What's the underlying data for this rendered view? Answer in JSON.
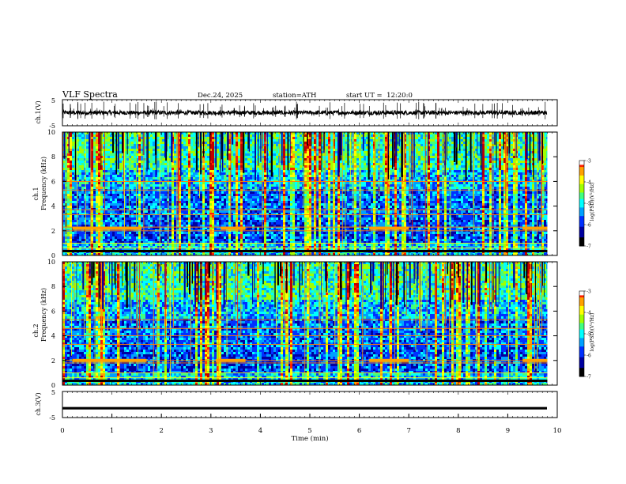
{
  "header": {
    "title": "VLF Spectra",
    "date": "Dec.24, 2025",
    "station": "station=ATH",
    "start_ut": "start UT =  12:20:0"
  },
  "chart_data": [
    {
      "type": "line",
      "panel": "ch1-waveform",
      "ylabel": "ch.1(V)",
      "ylim": [
        -5,
        5
      ],
      "y_ticks": [
        "5",
        "-5"
      ],
      "xlim": [
        0,
        10
      ],
      "visible_x_range": [
        0,
        9.8
      ],
      "baseline_v": 0,
      "description_values": {
        "typical_min_v": -1.5,
        "typical_max_v": 1.5
      }
    },
    {
      "type": "heatmap",
      "panel": "ch1-spectrogram",
      "ylabel": "ch.1 Frequency (kHz)",
      "ylim": [
        0,
        10
      ],
      "y_ticks": [
        "0",
        "2",
        "4",
        "6",
        "8",
        "10"
      ],
      "xlim": [
        0,
        10
      ],
      "visible_x_range": [
        0,
        9.8
      ],
      "colorbar": {
        "label": "log(PSD)(V²/Hz)",
        "range": [
          -7,
          -3
        ],
        "ticks": [
          "-3",
          "-4",
          "-5",
          "-6",
          "-7"
        ]
      },
      "band_lines_khz": [
        0.3,
        0.6,
        1.0,
        2.0,
        2.3,
        3.3,
        3.7,
        5.3,
        6.0
      ],
      "bright_band_segments": [
        {
          "x_min": [
            0.2,
            1.6
          ],
          "freq_khz": 2.2
        },
        {
          "x_min": [
            3.2,
            3.7
          ],
          "freq_khz": 2.2
        },
        {
          "x_min": [
            6.2,
            7.0
          ],
          "freq_khz": 2.2
        },
        {
          "x_min": [
            9.3,
            9.8
          ],
          "freq_khz": 2.2
        }
      ]
    },
    {
      "type": "heatmap",
      "panel": "ch2-spectrogram",
      "ylabel": "ch.2 Frequency (kHz)",
      "ylim": [
        0,
        10
      ],
      "y_ticks": [
        "0",
        "2",
        "4",
        "6",
        "8",
        "10"
      ],
      "xlim": [
        0,
        10
      ],
      "visible_x_range": [
        0,
        9.8
      ],
      "colorbar": {
        "label": "log(PSD)(V²/Hz)",
        "range": [
          -7,
          -3
        ],
        "ticks": [
          "-3",
          "-4",
          "-5",
          "-6",
          "-7"
        ]
      },
      "band_lines_khz": [
        0.3,
        0.6,
        1.0,
        1.8,
        2.0,
        3.3,
        4.0,
        4.6,
        5.3
      ],
      "bright_band_segments": [
        {
          "x_min": [
            0.2,
            1.7
          ],
          "freq_khz": 2.0
        },
        {
          "x_min": [
            3.1,
            3.7
          ],
          "freq_khz": 2.0
        },
        {
          "x_min": [
            6.2,
            7.0
          ],
          "freq_khz": 2.0
        },
        {
          "x_min": [
            9.3,
            9.8
          ],
          "freq_khz": 2.0
        }
      ]
    },
    {
      "type": "line",
      "panel": "ch3-waveform",
      "ylabel": "ch.3(V)",
      "ylim": [
        -5,
        5
      ],
      "y_ticks": [
        "5",
        "-5"
      ],
      "xlim": [
        0,
        10
      ],
      "visible_x_range": [
        0,
        9.8
      ],
      "baseline_v": -1.5,
      "xlabel": "Time (min)",
      "x_ticks": [
        "0",
        "1",
        "2",
        "3",
        "4",
        "5",
        "6",
        "7",
        "8",
        "9",
        "10"
      ]
    }
  ],
  "colors": {
    "frame": "#000000",
    "background": "#ffffff",
    "colormap": [
      "#000000",
      "#0000a0",
      "#0030ff",
      "#00a0ff",
      "#00ffff",
      "#40ff80",
      "#a0ff00",
      "#ffff00",
      "#ffa000",
      "#ff2000",
      "#c00000",
      "#ffffff"
    ]
  }
}
